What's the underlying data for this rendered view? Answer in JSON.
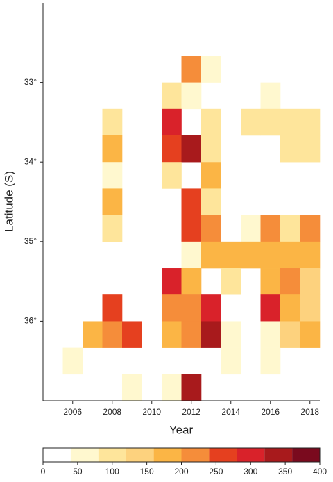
{
  "chart_data": {
    "type": "heatmap",
    "xlabel": "Year",
    "ylabel": "Latitude (S)",
    "x": [
      2005,
      2006,
      2007,
      2008,
      2009,
      2010,
      2011,
      2012,
      2013,
      2014,
      2015,
      2016,
      2017,
      2018
    ],
    "y": [
      32.167,
      32.5,
      32.833,
      33.167,
      33.5,
      33.833,
      34.167,
      34.5,
      34.833,
      35.167,
      35.5,
      35.833,
      36.167,
      36.5,
      36.833
    ],
    "z": [
      [
        null,
        null,
        null,
        null,
        null,
        null,
        null,
        null,
        null,
        null,
        null,
        null,
        null,
        null
      ],
      [
        null,
        null,
        null,
        null,
        null,
        null,
        null,
        null,
        null,
        null,
        null,
        null,
        null,
        null
      ],
      [
        null,
        null,
        null,
        null,
        null,
        null,
        null,
        230,
        60,
        null,
        null,
        null,
        null,
        null
      ],
      [
        null,
        null,
        null,
        null,
        null,
        null,
        110,
        60,
        null,
        null,
        null,
        60,
        null,
        null
      ],
      [
        null,
        null,
        null,
        110,
        null,
        null,
        300,
        null,
        110,
        null,
        110,
        110,
        100,
        100
      ],
      [
        null,
        null,
        null,
        180,
        null,
        null,
        270,
        340,
        110,
        null,
        null,
        null,
        100,
        100
      ],
      [
        null,
        null,
        null,
        60,
        null,
        null,
        110,
        null,
        180,
        null,
        null,
        null,
        null,
        null
      ],
      [
        null,
        null,
        null,
        180,
        null,
        null,
        null,
        270,
        110,
        null,
        null,
        null,
        null,
        null
      ],
      [
        null,
        null,
        null,
        110,
        null,
        null,
        null,
        270,
        230,
        null,
        60,
        230,
        110,
        230
      ],
      [
        null,
        null,
        null,
        null,
        null,
        null,
        null,
        60,
        180,
        170,
        180,
        180,
        180,
        180
      ],
      [
        null,
        null,
        null,
        null,
        null,
        null,
        300,
        180,
        null,
        110,
        null,
        180,
        230,
        130
      ],
      [
        null,
        null,
        null,
        270,
        null,
        null,
        230,
        230,
        300,
        null,
        null,
        300,
        180,
        130
      ],
      [
        null,
        null,
        180,
        230,
        270,
        null,
        180,
        230,
        340,
        60,
        null,
        60,
        130,
        180
      ],
      [
        null,
        60,
        null,
        null,
        null,
        null,
        null,
        null,
        null,
        60,
        null,
        60,
        null,
        null
      ],
      [
        null,
        null,
        null,
        null,
        60,
        null,
        60,
        340,
        null,
        null,
        null,
        null,
        null,
        null
      ]
    ],
    "xlim": [
      2004.5,
      2018.5
    ],
    "xticks": [
      2006,
      2008,
      2010,
      2012,
      2014,
      2016,
      2018
    ],
    "ylim": [
      32,
      37
    ],
    "yinverted": true,
    "yticks": [
      {
        "value": 33,
        "label": "33°"
      },
      {
        "value": 34,
        "label": "34°"
      },
      {
        "value": 35,
        "label": "35°"
      },
      {
        "value": 36,
        "label": "36°"
      }
    ],
    "colorscale": {
      "bounds": [
        0,
        40,
        80,
        120,
        160,
        200,
        240,
        280,
        320,
        360,
        400
      ],
      "colors": [
        "#ffffff",
        "#fff8cf",
        "#fee59b",
        "#fdd27e",
        "#fbb545",
        "#f58d3a",
        "#e5401f",
        "#d9222a",
        "#a81a1c",
        "#7a0a1e"
      ],
      "ticks": [
        0,
        50,
        100,
        150,
        200,
        250,
        300,
        350,
        400
      ]
    }
  }
}
